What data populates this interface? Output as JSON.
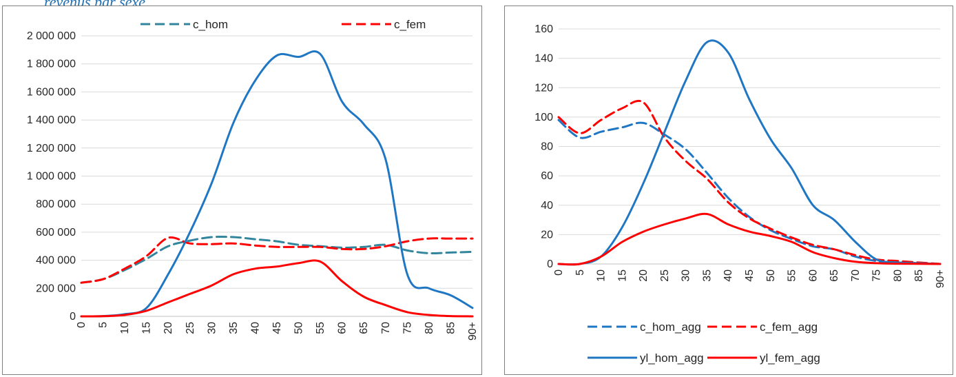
{
  "caption": "revenus par sexe",
  "chart_data": [
    {
      "type": "line",
      "categories": [
        "0",
        "5",
        "10",
        "15",
        "20",
        "25",
        "30",
        "35",
        "40",
        "45",
        "50",
        "55",
        "60",
        "65",
        "70",
        "75",
        "80",
        "85",
        "90+"
      ],
      "ylim": [
        0,
        2000000
      ],
      "yticks": [
        0,
        200000,
        400000,
        600000,
        800000,
        1000000,
        1200000,
        1400000,
        1600000,
        1800000,
        2000000
      ],
      "ytick_labels": [
        "0",
        "200 000",
        "400 000",
        "600 000",
        "800 000",
        "1 000 000",
        "1 200 000",
        "1 400 000",
        "1 600 000",
        "1 800 000",
        "2 000 000"
      ],
      "grid": true,
      "legend_position": "top",
      "series": [
        {
          "name": "c_hom",
          "color": "#31859c",
          "dash": true,
          "legend": true,
          "values": [
            240000,
            265000,
            330000,
            410000,
            500000,
            540000,
            565000,
            565000,
            550000,
            535000,
            510000,
            500000,
            490000,
            495000,
            510000,
            470000,
            450000,
            455000,
            460000
          ]
        },
        {
          "name": "c_fem",
          "color": "#ff0000",
          "dash": true,
          "legend": true,
          "values": [
            240000,
            265000,
            340000,
            430000,
            560000,
            520000,
            515000,
            520000,
            505000,
            495000,
            495000,
            495000,
            480000,
            480000,
            500000,
            535000,
            555000,
            555000,
            555000
          ]
        },
        {
          "name": "",
          "color": "#1f77c4",
          "dash": false,
          "legend": false,
          "values": [
            0,
            2000,
            15000,
            60000,
            300000,
            600000,
            950000,
            1380000,
            1680000,
            1860000,
            1850000,
            1870000,
            1530000,
            1370000,
            1120000,
            300000,
            200000,
            150000,
            60000
          ]
        },
        {
          "name": "",
          "color": "#ff0000",
          "dash": false,
          "legend": false,
          "values": [
            0,
            1000,
            10000,
            40000,
            100000,
            160000,
            220000,
            300000,
            340000,
            355000,
            380000,
            390000,
            250000,
            140000,
            80000,
            30000,
            10000,
            2000,
            0
          ]
        }
      ]
    },
    {
      "type": "line",
      "categories": [
        "0",
        "5",
        "10",
        "15",
        "20",
        "25",
        "30",
        "35",
        "40",
        "45",
        "50",
        "55",
        "60",
        "65",
        "70",
        "75",
        "80",
        "85",
        "90+"
      ],
      "ylim": [
        0,
        160
      ],
      "yticks": [
        0,
        20,
        40,
        60,
        80,
        100,
        120,
        140,
        160
      ],
      "ytick_labels": [
        "0",
        "20",
        "40",
        "60",
        "80",
        "100",
        "120",
        "140",
        "160"
      ],
      "grid": true,
      "legend_position": "bottom",
      "series": [
        {
          "name": "c_hom_agg",
          "color": "#1f77c4",
          "dash": true,
          "legend": true,
          "values": [
            98,
            86,
            90,
            93,
            96,
            88,
            78,
            62,
            45,
            32,
            23,
            17,
            12,
            10,
            5,
            2,
            1,
            0.5,
            0
          ]
        },
        {
          "name": "c_fem_agg",
          "color": "#ff0000",
          "dash": true,
          "legend": true,
          "values": [
            100,
            89,
            98,
            106,
            110,
            86,
            70,
            58,
            42,
            31,
            24,
            18,
            13,
            10,
            6,
            3,
            2,
            1,
            0
          ]
        },
        {
          "name": "yl_hom_agg",
          "color": "#1f77c4",
          "dash": false,
          "legend": true,
          "values": [
            0,
            0,
            5,
            25,
            55,
            90,
            125,
            151,
            144,
            112,
            85,
            65,
            40,
            30,
            15,
            3,
            1,
            0.5,
            0
          ]
        },
        {
          "name": "yl_fem_agg",
          "color": "#ff0000",
          "dash": false,
          "legend": true,
          "values": [
            0,
            0,
            5,
            15,
            22,
            27,
            31,
            34,
            27,
            22,
            19,
            15,
            8,
            4,
            1.5,
            0.5,
            0.2,
            0.1,
            0
          ]
        }
      ]
    }
  ]
}
